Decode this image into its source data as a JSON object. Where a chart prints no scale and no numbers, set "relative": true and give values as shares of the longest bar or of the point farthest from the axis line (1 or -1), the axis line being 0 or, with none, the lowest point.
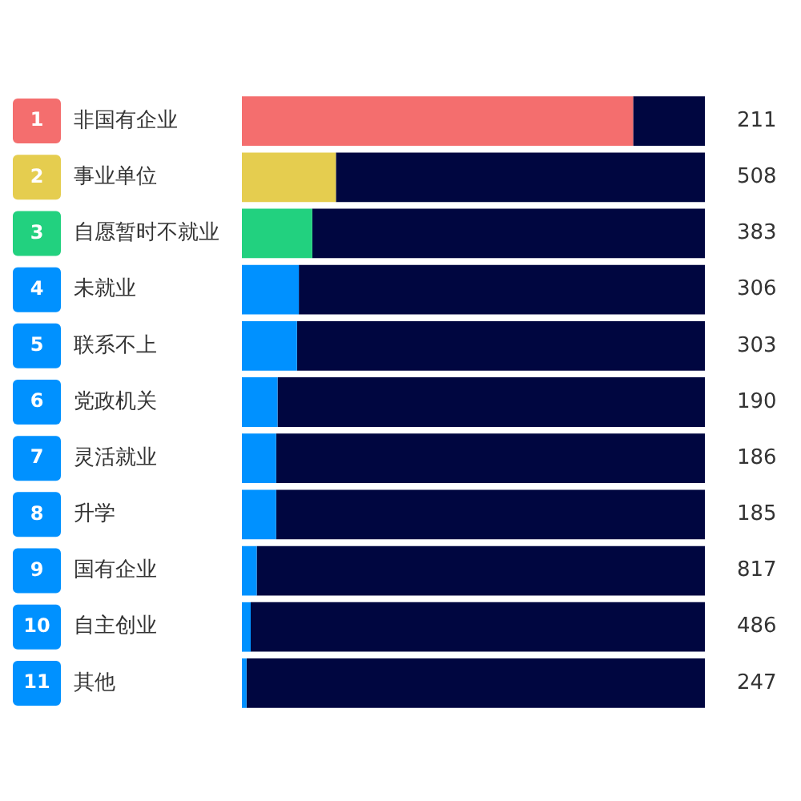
{
  "chart_data": {
    "type": "bar",
    "orientation": "horizontal",
    "stacked": true,
    "relative": true,
    "categories": [
      "非国有企业",
      "事业单位",
      "自愿暂时不就业",
      "未就业",
      "联系不上",
      "党政机关",
      "灵活就业",
      "升学",
      "国有企业",
      "自主创业",
      "其他"
    ],
    "series": [
      {
        "colors": [
          "#f46e6e",
          "#e5cd4f",
          "#22d17f",
          "#0091ff",
          "#0091ff",
          "#0091ff",
          "#0091ff",
          "#0091ff",
          "#0091ff",
          "#0091ff",
          "#0091ff"
        ],
        "values": [
          0.845,
          0.203,
          0.152,
          0.123,
          0.119,
          0.077,
          0.074,
          0.074,
          0.032,
          0.019,
          0.01
        ]
      },
      {
        "color": "#000640",
        "values": [
          0.155,
          0.797,
          0.848,
          0.877,
          0.881,
          0.923,
          0.926,
          0.926,
          0.968,
          0.981,
          0.99
        ]
      }
    ],
    "annotations": [
      "1",
      "2",
      "3",
      "4",
      "5",
      "6",
      "7",
      "8",
      "9",
      "10",
      "11",
      "211",
      "508",
      "383",
      "306",
      "303",
      "190",
      "186",
      "185",
      "817",
      "486",
      "247"
    ]
  }
}
